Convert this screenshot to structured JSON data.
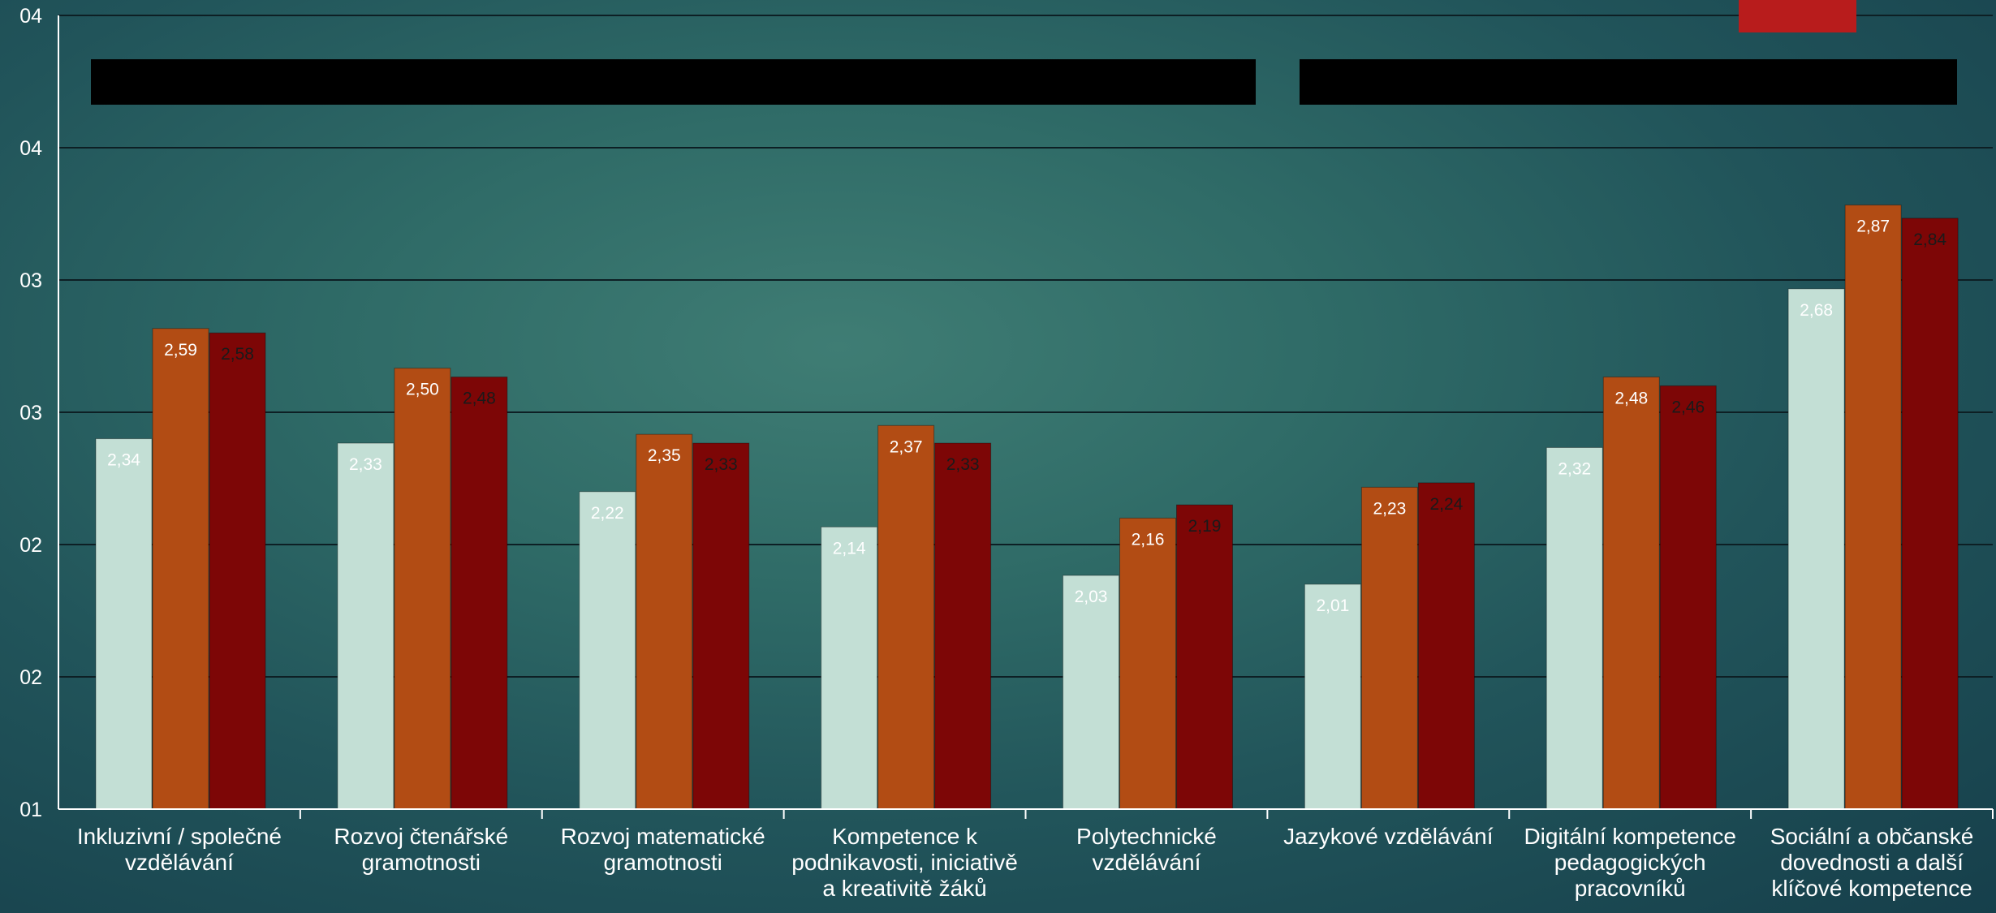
{
  "chart_data": {
    "type": "bar",
    "y_tick_labels": [
      "01",
      "02",
      "02",
      "03",
      "03",
      "04",
      "04"
    ],
    "ylim": [
      1.5,
      3.3
    ],
    "categories": [
      [
        "Inkluzivní / společné",
        "vzdělávání"
      ],
      [
        "Rozvoj čtenářské",
        "gramotnosti"
      ],
      [
        "Rozvoj matematické",
        "gramotnosti"
      ],
      [
        "Kompetence k",
        "podnikavosti, iniciativě",
        "a kreativitě žáků"
      ],
      [
        "Polytechnické",
        "vzdělávání"
      ],
      [
        "Jazykové vzdělávání"
      ],
      [
        "Digitální kompetence",
        "pedagogických",
        "pracovníků"
      ],
      [
        "Sociální a občanské",
        "dovednosti a další",
        "klíčové kompetence"
      ]
    ],
    "series": [
      {
        "color": "#c3dfd5",
        "label_color": "#ffffff",
        "values": [
          2.34,
          2.33,
          2.22,
          2.14,
          2.03,
          2.01,
          2.32,
          2.68
        ],
        "labels": [
          "2,34",
          "2,33",
          "2,22",
          "2,14",
          "2,03",
          "2,01",
          "2,32",
          "2,68"
        ]
      },
      {
        "color": "#b24c14",
        "label_color": "#ffffff",
        "values": [
          2.59,
          2.5,
          2.35,
          2.37,
          2.16,
          2.23,
          2.48,
          2.87
        ],
        "labels": [
          "2,59",
          "2,50",
          "2,35",
          "2,37",
          "2,16",
          "2,23",
          "2,48",
          "2,87"
        ]
      },
      {
        "color": "#7d0606",
        "label_color": "#1a1a1a",
        "values": [
          2.58,
          2.48,
          2.33,
          2.33,
          2.19,
          2.24,
          2.46,
          2.84
        ],
        "labels": [
          "2,58",
          "2,48",
          "2,33",
          "2,33",
          "2,19",
          "2,24",
          "2,46",
          "2,84"
        ]
      }
    ],
    "grid": true,
    "legend": "redacted (black bars at top)",
    "colors": {
      "redacted_box": "#000000",
      "red_marker": "#b81c1c",
      "axis": "#ffffff",
      "gridline": "#0d1f24"
    }
  }
}
